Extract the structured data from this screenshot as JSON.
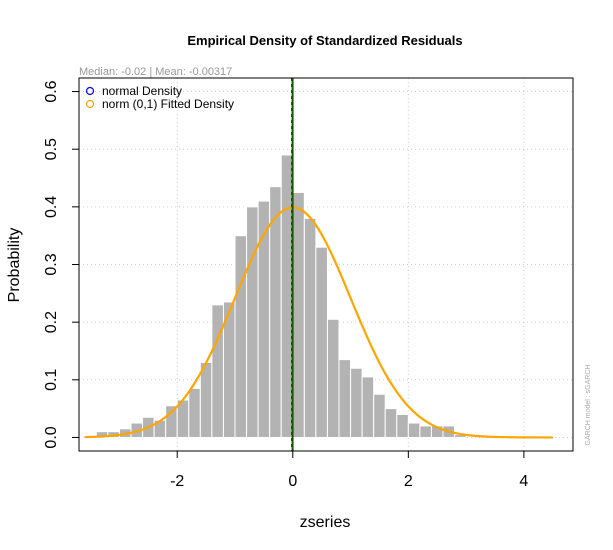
{
  "chart_data": {
    "type": "bar",
    "title": "Empirical Density of Standardized Residuals",
    "subtitle": "Median:  -0.02 | Mean:  -0.00317",
    "xlabel": "zseries",
    "ylabel": "Probability",
    "side_note": "GARCH model :  sGARCH",
    "xlim": [
      -3.7,
      4.85
    ],
    "ylim": [
      -0.0235,
      0.6235
    ],
    "x_ticks": [
      -2,
      0,
      2,
      4
    ],
    "y_ticks": [
      0.0,
      0.1,
      0.2,
      0.3,
      0.4,
      0.5,
      0.6
    ],
    "x_tick_labels": [
      "-2",
      "0",
      "2",
      "4"
    ],
    "y_tick_labels": [
      "0.0",
      "0.1",
      "0.2",
      "0.3",
      "0.4",
      "0.5",
      "0.6"
    ],
    "grid": true,
    "bin_width": 0.2,
    "bin_edges_start": -3.4,
    "bin_heights": [
      0.01,
      0.01,
      0.015,
      0.025,
      0.035,
      0.03,
      0.055,
      0.065,
      0.085,
      0.13,
      0.23,
      0.235,
      0.35,
      0.4,
      0.41,
      0.435,
      0.49,
      0.425,
      0.38,
      0.33,
      0.205,
      0.135,
      0.12,
      0.105,
      0.075,
      0.05,
      0.04,
      0.025,
      0.02,
      0.02,
      0.02,
      0.005
    ],
    "vertical_lines": [
      {
        "name": "mean-line",
        "x": -0.00317,
        "color": "#006400"
      },
      {
        "name": "median-line",
        "x": -0.02,
        "color": "#c00000"
      }
    ],
    "density_curves": [
      {
        "name": "normal Density",
        "mean": 0,
        "sd": 1,
        "color": "#0000ff"
      },
      {
        "name": "norm (0,1) Fitted Density",
        "mean": 0,
        "sd": 1,
        "color": "#ffa500"
      }
    ],
    "legend": {
      "position": "top-left",
      "entries": [
        {
          "label": "normal Density",
          "color": "#0000ff"
        },
        {
          "label": "norm (0,1) Fitted Density",
          "color": "#ffa500"
        }
      ]
    },
    "colors": {
      "bars": "#b3b3b3",
      "grid": "#cccccc"
    }
  }
}
